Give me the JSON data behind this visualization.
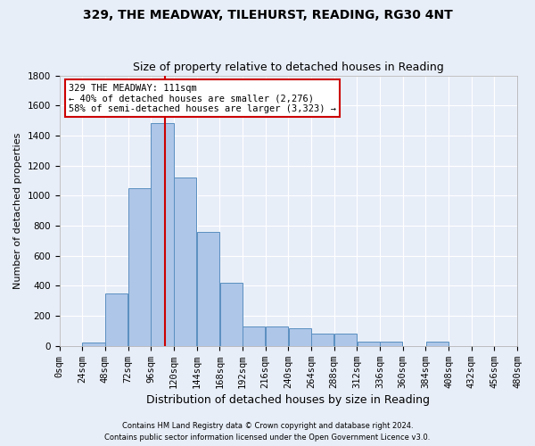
{
  "title1": "329, THE MEADWAY, TILEHURST, READING, RG30 4NT",
  "title2": "Size of property relative to detached houses in Reading",
  "xlabel": "Distribution of detached houses by size in Reading",
  "ylabel": "Number of detached properties",
  "footer1": "Contains HM Land Registry data © Crown copyright and database right 2024.",
  "footer2": "Contains public sector information licensed under the Open Government Licence v3.0.",
  "annotation_title": "329 THE MEADWAY: 111sqm",
  "annotation_line1": "← 40% of detached houses are smaller (2,276)",
  "annotation_line2": "58% of semi-detached houses are larger (3,323) →",
  "property_size": 111,
  "bin_edges": [
    0,
    24,
    48,
    72,
    96,
    120,
    144,
    168,
    192,
    216,
    240,
    264,
    288,
    312,
    336,
    360,
    384,
    408,
    432,
    456,
    480
  ],
  "bar_heights": [
    0,
    20,
    350,
    1050,
    1480,
    1120,
    760,
    420,
    130,
    130,
    120,
    80,
    80,
    30,
    30,
    0,
    30,
    0,
    0,
    0
  ],
  "bar_color": "#aec6e8",
  "bar_edge_color": "#5a8fc0",
  "line_color": "#cc0000",
  "ylim": [
    0,
    1800
  ],
  "yticks": [
    0,
    200,
    400,
    600,
    800,
    1000,
    1200,
    1400,
    1600,
    1800
  ],
  "background_color": "#e8eef8",
  "grid_color": "#ffffff",
  "annotation_box_color": "#ffffff",
  "annotation_border_color": "#cc0000",
  "title1_fontsize": 10,
  "title2_fontsize": 9,
  "xlabel_fontsize": 9,
  "ylabel_fontsize": 8,
  "tick_fontsize": 7.5
}
